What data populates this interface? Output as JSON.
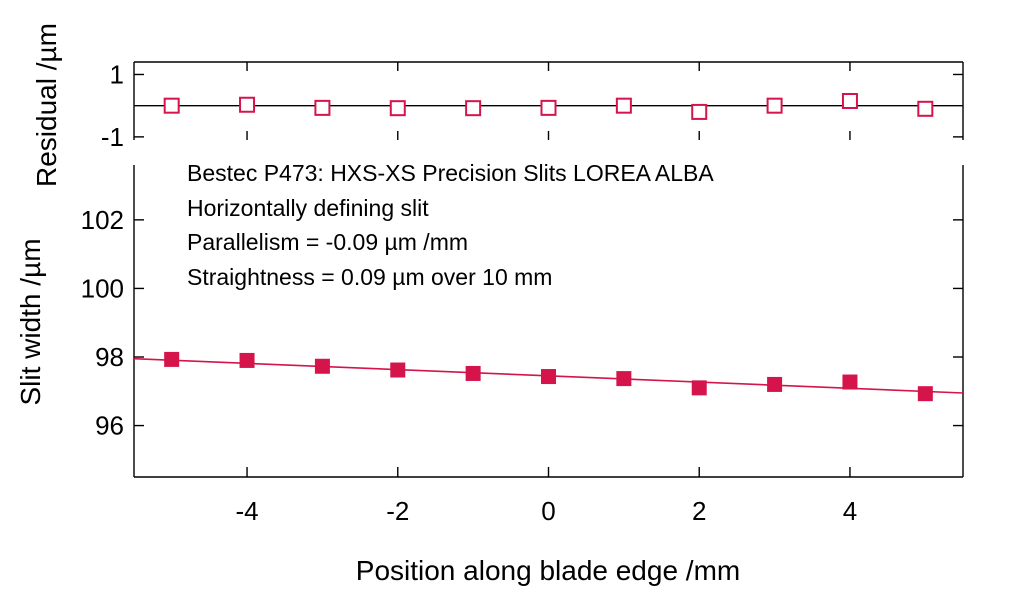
{
  "chart_data": [
    {
      "type": "scatter",
      "panel": "residual",
      "ylabel": "Residual /µm",
      "ylim": [
        -1.1,
        1.4
      ],
      "yticks": [
        1,
        -1
      ],
      "yticklabels": [
        "1",
        "-1"
      ],
      "xlim": [
        -5.5,
        5.5
      ],
      "series": [
        {
          "x": [
            -5,
            -4,
            -3,
            -2,
            -1,
            0,
            1,
            2,
            3,
            4,
            5
          ],
          "values": [
            0.0,
            0.03,
            -0.07,
            -0.08,
            -0.08,
            -0.07,
            0.0,
            -0.2,
            0.0,
            0.15,
            -0.1
          ],
          "marker": "open-square",
          "color": "#d4144a"
        }
      ],
      "zero_line": true
    },
    {
      "type": "scatter",
      "panel": "main",
      "xlabel": "Position along blade edge /mm",
      "ylabel": "Slit width /µm",
      "xlim": [
        -5.5,
        5.5
      ],
      "ylim": [
        94.5,
        103.6
      ],
      "xticks": [
        -4,
        -2,
        0,
        2,
        4
      ],
      "xticklabels": [
        "-4",
        "-2",
        "0",
        "2",
        "4"
      ],
      "yticks": [
        96,
        98,
        100,
        102
      ],
      "yticklabels": [
        "96",
        "98",
        "100",
        "102"
      ],
      "series": [
        {
          "x": [
            -5,
            -4,
            -3,
            -2,
            -1,
            0,
            1,
            2,
            3,
            4,
            5
          ],
          "values": [
            97.93,
            97.9,
            97.73,
            97.62,
            97.52,
            97.43,
            97.37,
            97.1,
            97.2,
            97.27,
            96.93
          ],
          "marker": "filled-square",
          "color": "#d4144a"
        }
      ],
      "fit": {
        "x": [
          -5.5,
          5.5
        ],
        "values": [
          97.95,
          96.95
        ],
        "color": "#d4144a"
      },
      "annotations": [
        "Bestec P473: HXS-XS Precision Slits LOREA ALBA",
        "Horizontally defining slit",
        "Parallelism =  -0.09 µm /mm",
        "Straightness = 0.09 µm over 10 mm"
      ]
    }
  ]
}
